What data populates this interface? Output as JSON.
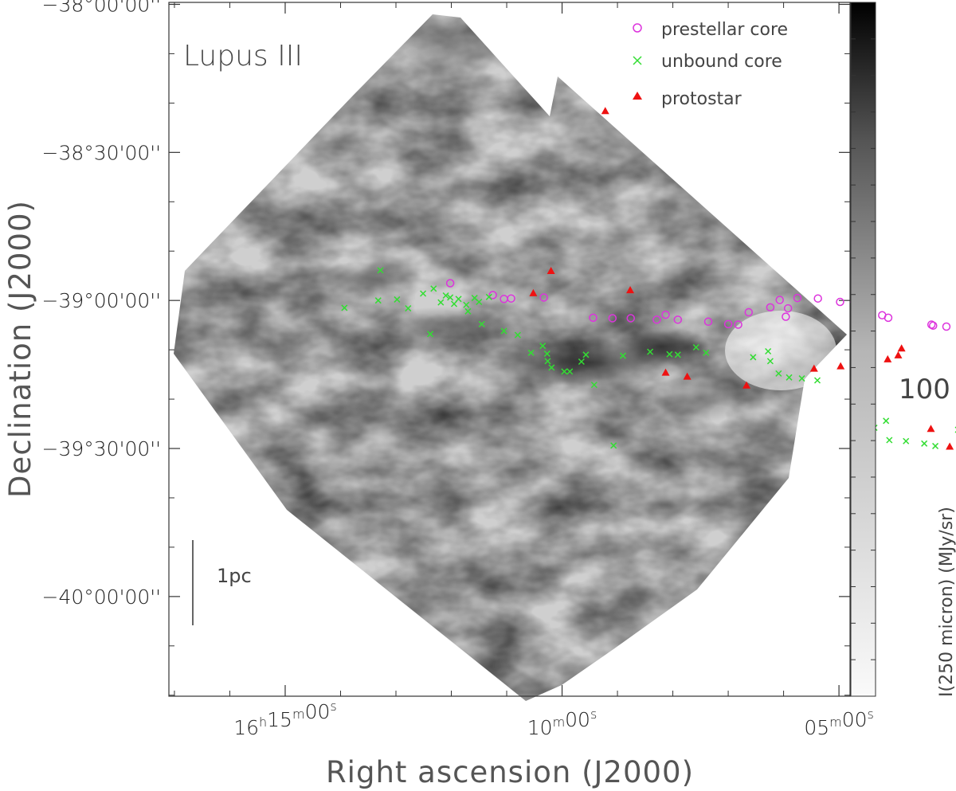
{
  "chart_data": {
    "type": "scatter",
    "title": "Lupus III",
    "xlabel": "Right ascension (J2000)",
    "ylabel": "Declination (J2000)",
    "colorbar": {
      "label": "I(250 micron) (MJy/sr)",
      "tick_label": "100",
      "colormap": "grayscale, white (low) to black (high)"
    },
    "scale_bar_label": "1pc",
    "x_ticks": [
      {
        "label_h": "16",
        "label_m": "15",
        "label_s": "00",
        "h": "h",
        "m": "m",
        "s": "s",
        "ra_min": 975
      },
      {
        "label_h": "",
        "label_m": "10",
        "label_s": "00",
        "h": "",
        "m": "m",
        "s": "s",
        "ra_min": 970
      },
      {
        "label_h": "",
        "label_m": "05",
        "label_s": "00",
        "h": "",
        "m": "m",
        "s": "s",
        "ra_min": 965
      }
    ],
    "y_ticks": [
      {
        "label": "−38°00'00''",
        "dec_arcmin": -2280
      },
      {
        "label": "−38°30'00''",
        "dec_arcmin": -2310
      },
      {
        "label": "−39°00'00''",
        "dec_arcmin": -2340
      },
      {
        "label": "−39°30'00''",
        "dec_arcmin": -2370
      },
      {
        "label": "−40°00'00''",
        "dec_arcmin": -2400
      }
    ],
    "xlim_ra_min": [
      977.1,
      964.8
    ],
    "ylim_dec_arcmin": [
      -2279.6,
      -2420.2
    ],
    "legend_position": "top-right",
    "series": [
      {
        "name": "prestellar core",
        "marker": "circle",
        "color": "#dd33dd",
        "points": [
          [
            972.02,
            -2336.5
          ],
          [
            971.25,
            -2338.9
          ],
          [
            971.05,
            -2339.7
          ],
          [
            970.92,
            -2339.6
          ],
          [
            970.33,
            -2339.4
          ],
          [
            969.44,
            -2343.5
          ],
          [
            969.09,
            -2343.6
          ],
          [
            968.76,
            -2343.6
          ],
          [
            968.29,
            -2343.9
          ],
          [
            968.13,
            -2342.9
          ],
          [
            967.91,
            -2343.9
          ],
          [
            967.36,
            -2344.3
          ],
          [
            967.0,
            -2344.8
          ],
          [
            966.82,
            -2344.9
          ],
          [
            966.63,
            -2342.4
          ],
          [
            966.24,
            -2341.4
          ],
          [
            966.07,
            -2339.9
          ],
          [
            965.96,
            -2343.3
          ],
          [
            965.92,
            -2341.6
          ],
          [
            965.75,
            -2339.5
          ],
          [
            965.38,
            -2339.6
          ],
          [
            964.98,
            -2340.3
          ],
          [
            964.72,
            -2340.3
          ],
          [
            964.22,
            -2343.0
          ],
          [
            964.11,
            -2343.5
          ],
          [
            963.33,
            -2344.9
          ],
          [
            963.3,
            -2345.1
          ],
          [
            963.06,
            -2345.3
          ],
          [
            962.54,
            -2346.0
          ]
        ]
      },
      {
        "name": "unbound core",
        "marker": "cross",
        "color": "#33dd33",
        "points": [
          [
            973.93,
            -2341.5
          ],
          [
            973.28,
            -2333.9
          ],
          [
            973.32,
            -2340.0
          ],
          [
            972.98,
            -2339.8
          ],
          [
            972.78,
            -2341.6
          ],
          [
            972.51,
            -2338.6
          ],
          [
            972.38,
            -2346.8
          ],
          [
            972.32,
            -2337.6
          ],
          [
            972.19,
            -2340.4
          ],
          [
            972.1,
            -2339.0
          ],
          [
            972.02,
            -2339.4
          ],
          [
            971.95,
            -2340.7
          ],
          [
            971.87,
            -2339.7
          ],
          [
            971.73,
            -2340.9
          ],
          [
            971.7,
            -2342.2
          ],
          [
            971.58,
            -2339.5
          ],
          [
            971.5,
            -2340.3
          ],
          [
            971.45,
            -2344.8
          ],
          [
            971.32,
            -2339.3
          ],
          [
            971.05,
            -2346.2
          ],
          [
            970.8,
            -2347.0
          ],
          [
            970.56,
            -2350.6
          ],
          [
            970.35,
            -2349.2
          ],
          [
            970.26,
            -2352.3
          ],
          [
            970.27,
            -2350.8
          ],
          [
            970.19,
            -2353.6
          ],
          [
            969.96,
            -2354.4
          ],
          [
            969.86,
            -2354.4
          ],
          [
            969.65,
            -2352.4
          ],
          [
            969.57,
            -2351.0
          ],
          [
            969.42,
            -2357.1
          ],
          [
            969.07,
            -2369.4
          ],
          [
            968.9,
            -2351.2
          ],
          [
            968.41,
            -2350.4
          ],
          [
            968.06,
            -2350.9
          ],
          [
            967.91,
            -2351.0
          ],
          [
            967.58,
            -2349.5
          ],
          [
            967.4,
            -2350.6
          ],
          [
            966.55,
            -2351.5
          ],
          [
            966.28,
            -2350.3
          ],
          [
            966.24,
            -2352.3
          ],
          [
            966.09,
            -2354.8
          ],
          [
            965.9,
            -2355.6
          ],
          [
            965.67,
            -2355.8
          ],
          [
            965.39,
            -2356.2
          ],
          [
            964.58,
            -2362.9
          ],
          [
            964.47,
            -2367.8
          ],
          [
            964.36,
            -2365.8
          ],
          [
            964.15,
            -2364.4
          ],
          [
            964.09,
            -2368.3
          ],
          [
            963.79,
            -2368.5
          ],
          [
            963.46,
            -2369.0
          ],
          [
            963.26,
            -2369.5
          ],
          [
            962.85,
            -2366.2
          ],
          [
            962.77,
            -2367.6
          ],
          [
            962.4,
            -2362.1
          ],
          [
            962.19,
            -2363.9
          ],
          [
            962.13,
            -2362.0
          ],
          [
            961.92,
            -2363.4
          ],
          [
            961.72,
            -2362.6
          ],
          [
            961.48,
            -2360.6
          ],
          [
            961.19,
            -2356.2
          ],
          [
            961.03,
            -2354.1
          ],
          [
            960.91,
            -2356.0
          ],
          [
            960.42,
            -2359.6
          ]
        ]
      },
      {
        "name": "protostar",
        "marker": "triangle",
        "color": "#ee1111",
        "points": [
          [
            969.22,
            -2301.6
          ],
          [
            970.2,
            -2334.0
          ],
          [
            970.52,
            -2338.5
          ],
          [
            968.77,
            -2337.9
          ],
          [
            968.13,
            -2354.6
          ],
          [
            967.74,
            -2355.4
          ],
          [
            966.67,
            -2357.2
          ],
          [
            965.45,
            -2353.8
          ],
          [
            964.97,
            -2353.3
          ],
          [
            964.49,
            -2353.0
          ],
          [
            964.42,
            -2352.7
          ],
          [
            964.12,
            -2351.9
          ],
          [
            963.93,
            -2351.1
          ],
          [
            963.87,
            -2349.7
          ],
          [
            963.34,
            -2366.0
          ],
          [
            963.0,
            -2369.6
          ],
          [
            962.41,
            -2381.3
          ],
          [
            961.69,
            -2360.1
          ],
          [
            961.42,
            -2362.3
          ],
          [
            961.35,
            -2363.2
          ],
          [
            959.87,
            -2366.8
          ]
        ]
      }
    ]
  }
}
